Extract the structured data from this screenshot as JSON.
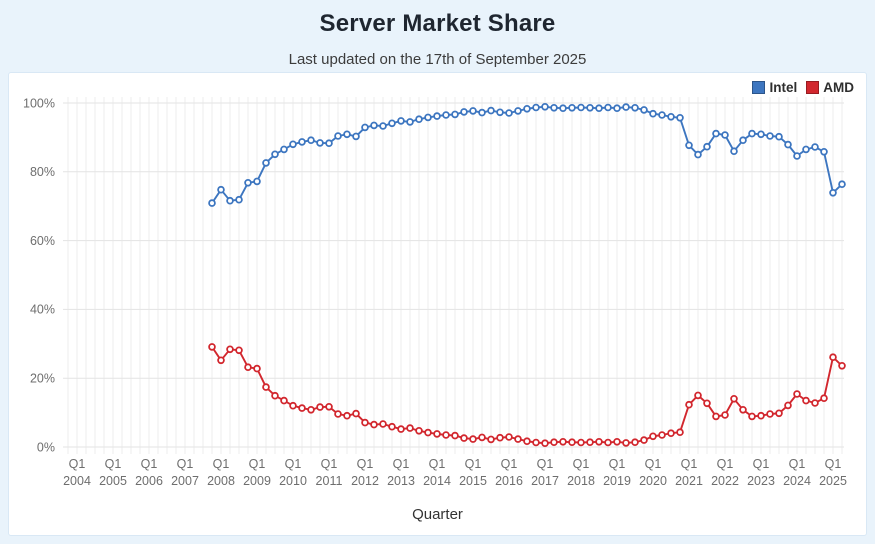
{
  "chart_data": {
    "type": "line",
    "title": "Server Market Share",
    "subtitle": "Last updated on the 17th of September 2025",
    "xlabel": "Quarter",
    "ylabel": "",
    "ylim": [
      0,
      100
    ],
    "grid": true,
    "legend_position": "top-right",
    "y_tick_labels": [
      "0%",
      "20%",
      "40%",
      "60%",
      "80%",
      "100%"
    ],
    "x_tick_quarter_label": "Q1",
    "x_tick_years": [
      "2004",
      "2005",
      "2006",
      "2007",
      "2008",
      "2009",
      "2010",
      "2011",
      "2012",
      "2013",
      "2014",
      "2015",
      "2016",
      "2017",
      "2018",
      "2019",
      "2020",
      "2021",
      "2022",
      "2023",
      "2024",
      "2025"
    ],
    "quarters": [
      "2007-Q4",
      "2008-Q1",
      "2008-Q2",
      "2008-Q3",
      "2008-Q4",
      "2009-Q1",
      "2009-Q2",
      "2009-Q3",
      "2009-Q4",
      "2010-Q1",
      "2010-Q2",
      "2010-Q3",
      "2010-Q4",
      "2011-Q1",
      "2011-Q2",
      "2011-Q3",
      "2011-Q4",
      "2012-Q1",
      "2012-Q2",
      "2012-Q3",
      "2012-Q4",
      "2013-Q1",
      "2013-Q2",
      "2013-Q3",
      "2013-Q4",
      "2014-Q1",
      "2014-Q2",
      "2014-Q3",
      "2014-Q4",
      "2015-Q1",
      "2015-Q2",
      "2015-Q3",
      "2015-Q4",
      "2016-Q1",
      "2016-Q2",
      "2016-Q3",
      "2016-Q4",
      "2017-Q1",
      "2017-Q2",
      "2017-Q3",
      "2017-Q4",
      "2018-Q1",
      "2018-Q2",
      "2018-Q3",
      "2018-Q4",
      "2019-Q1",
      "2019-Q2",
      "2019-Q3",
      "2019-Q4",
      "2020-Q1",
      "2020-Q2",
      "2020-Q3",
      "2020-Q4",
      "2021-Q1",
      "2021-Q2",
      "2021-Q3",
      "2021-Q4",
      "2022-Q1",
      "2022-Q2",
      "2022-Q3",
      "2022-Q4",
      "2023-Q1",
      "2023-Q2",
      "2023-Q3",
      "2023-Q4",
      "2024-Q1",
      "2024-Q2",
      "2024-Q3",
      "2024-Q4",
      "2025-Q1",
      "2025-Q2"
    ],
    "series": [
      {
        "name": "Intel",
        "color": "#3d76c0",
        "values": [
          70.9,
          74.8,
          71.6,
          71.9,
          76.8,
          77.2,
          82.6,
          85.1,
          86.5,
          88.0,
          88.7,
          89.2,
          88.4,
          88.3,
          90.4,
          90.9,
          90.3,
          92.9,
          93.5,
          93.3,
          94.1,
          94.8,
          94.5,
          95.3,
          95.8,
          96.2,
          96.5,
          96.7,
          97.4,
          97.7,
          97.2,
          97.8,
          97.3,
          97.1,
          97.7,
          98.3,
          98.7,
          98.9,
          98.6,
          98.5,
          98.6,
          98.7,
          98.6,
          98.5,
          98.7,
          98.5,
          98.8,
          98.6,
          98.0,
          96.9,
          96.5,
          96.0,
          95.7,
          87.7,
          85.0,
          87.3,
          91.1,
          90.7,
          86.0,
          89.2,
          91.1,
          90.9,
          90.4,
          90.2,
          87.9,
          84.6,
          86.5,
          87.2,
          85.8,
          73.9,
          76.4
        ]
      },
      {
        "name": "AMD",
        "color": "#d2272e",
        "values": [
          29.1,
          25.2,
          28.4,
          28.1,
          23.2,
          22.8,
          17.4,
          14.9,
          13.5,
          12.0,
          11.3,
          10.8,
          11.6,
          11.7,
          9.6,
          9.1,
          9.7,
          7.1,
          6.5,
          6.7,
          5.9,
          5.2,
          5.5,
          4.7,
          4.2,
          3.8,
          3.5,
          3.3,
          2.6,
          2.3,
          2.8,
          2.2,
          2.7,
          2.9,
          2.3,
          1.7,
          1.3,
          1.1,
          1.4,
          1.5,
          1.4,
          1.3,
          1.4,
          1.5,
          1.3,
          1.5,
          1.2,
          1.4,
          2.0,
          3.1,
          3.5,
          4.0,
          4.3,
          12.3,
          15.0,
          12.7,
          8.9,
          9.3,
          14.0,
          10.8,
          8.9,
          9.1,
          9.6,
          9.8,
          12.1,
          15.4,
          13.5,
          12.8,
          14.2,
          26.1,
          23.6
        ]
      }
    ],
    "colors": {
      "page_background": "#e9f3fb",
      "card_background": "#ffffff",
      "grid_horizontal": "#e3e3e3",
      "grid_vertical": "#eeeeee",
      "tick_text": "#6e6e6e",
      "title_text": "#1f2630"
    }
  }
}
